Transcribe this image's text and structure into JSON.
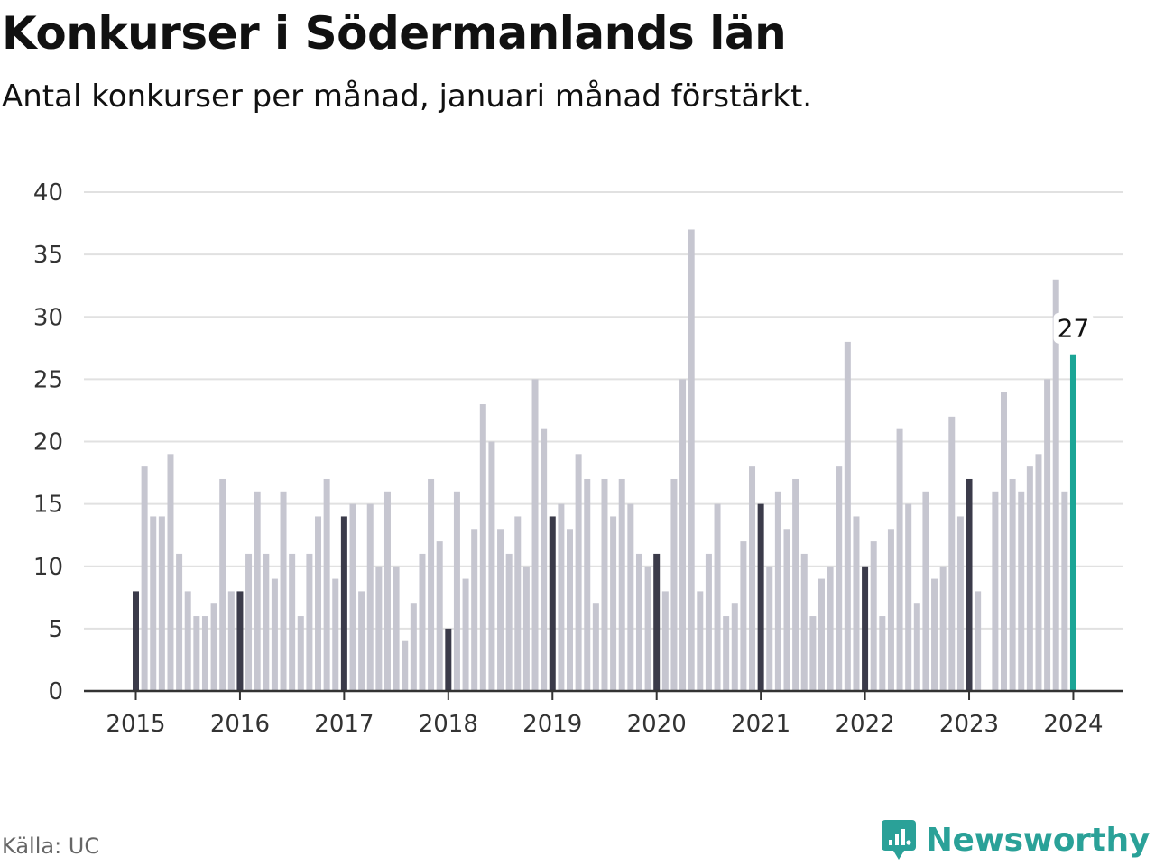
{
  "header": {
    "title": "Konkurser i Södermanlands län",
    "subtitle": "Antal konkurser per månad, januari månad förstärkt."
  },
  "footer": {
    "source": "Källa: UC",
    "brand": "Newsworthy"
  },
  "colors": {
    "bar": "#c6c6d0",
    "january": "#3b3b4a",
    "latest": "#1ba596",
    "grid": "#e1e1e1",
    "axis": "#333333",
    "brand": "#2aa198"
  },
  "chart_data": {
    "type": "bar",
    "title": "Konkurser i Södermanlands län",
    "subtitle": "Antal konkurser per månad, januari månad förstärkt.",
    "ylim": [
      0,
      40
    ],
    "yticks": [
      "0",
      "5",
      "10",
      "15",
      "20",
      "25",
      "30",
      "35",
      "40"
    ],
    "xticks": [
      "2015",
      "2016",
      "2017",
      "2018",
      "2019",
      "2020",
      "2021",
      "2022",
      "2023",
      "2024"
    ],
    "grid": true,
    "start": "2015-01",
    "values": [
      8,
      18,
      14,
      14,
      19,
      11,
      8,
      6,
      6,
      7,
      17,
      8,
      8,
      11,
      16,
      11,
      9,
      16,
      11,
      6,
      11,
      14,
      17,
      9,
      14,
      15,
      8,
      15,
      10,
      16,
      10,
      4,
      7,
      11,
      17,
      12,
      5,
      16,
      9,
      13,
      23,
      20,
      13,
      11,
      14,
      10,
      25,
      21,
      14,
      15,
      13,
      19,
      17,
      7,
      17,
      14,
      17,
      15,
      11,
      10,
      11,
      8,
      17,
      25,
      37,
      8,
      11,
      15,
      6,
      7,
      12,
      18,
      15,
      10,
      16,
      13,
      17,
      11,
      6,
      9,
      10,
      18,
      28,
      14,
      10,
      12,
      6,
      13,
      21,
      15,
      7,
      16,
      9,
      10,
      22,
      14,
      17,
      8,
      0,
      16,
      24,
      17,
      16,
      18,
      19,
      25,
      33,
      16,
      27
    ],
    "annotation": {
      "label": "27",
      "value": 27,
      "month": "2024-01"
    }
  }
}
